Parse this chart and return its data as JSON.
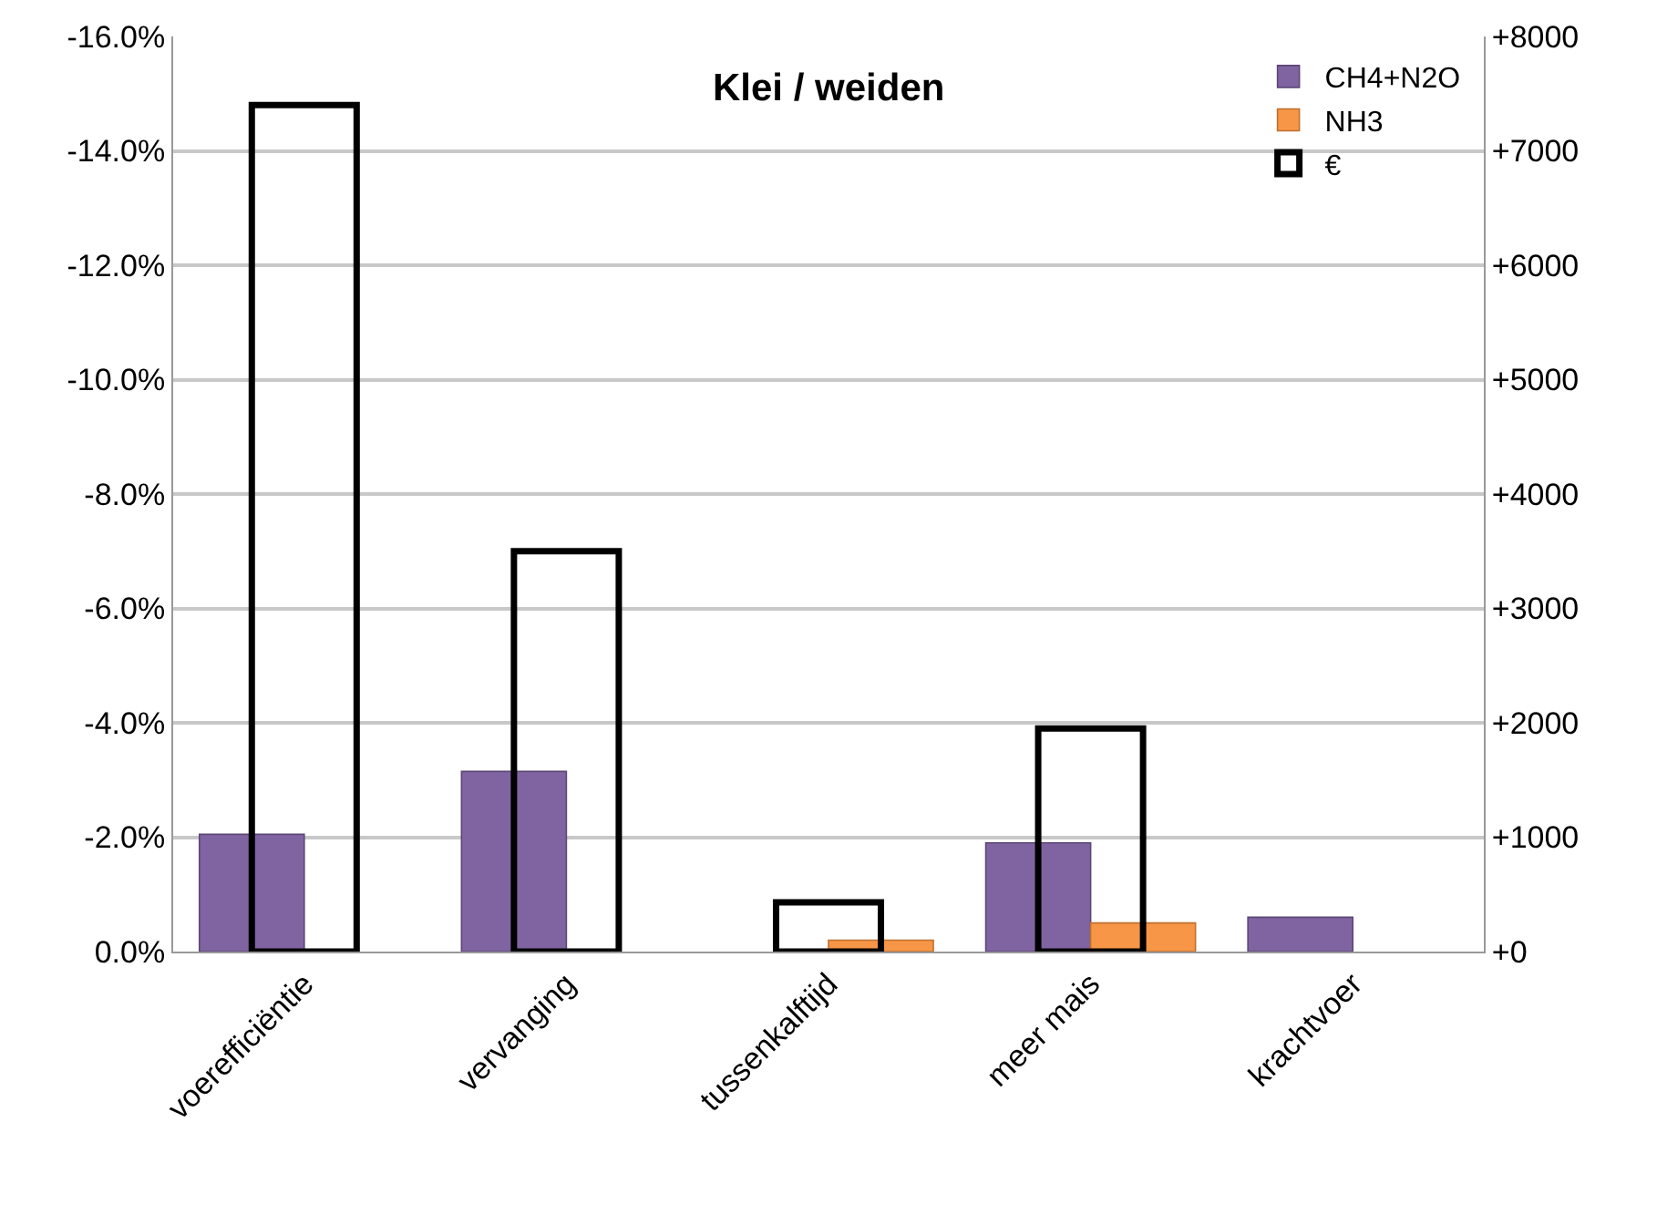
{
  "chart_data": {
    "type": "bar",
    "title": "Klei / weiden",
    "categories": [
      "voerefficiëntie",
      "vervanging",
      "tussenkalftijd",
      "meer mais",
      "krachtvoer"
    ],
    "series": [
      {
        "name": "CH4+N2O",
        "color": "#8064a2",
        "values": [
          -2.05,
          -3.15,
          null,
          -1.9,
          -0.6
        ]
      },
      {
        "name": "NH3",
        "color": "#f79646",
        "values": [
          null,
          null,
          -0.2,
          -0.5,
          null
        ]
      },
      {
        "name": "€",
        "color": "#000000",
        "axis": "y2",
        "values": [
          7400,
          3500,
          430,
          1950,
          null
        ]
      }
    ],
    "ylim": [
      0,
      -16
    ],
    "yticks": [
      {
        "value": 0,
        "label": "0.0%"
      },
      {
        "value": -2,
        "label": "-2.0%"
      },
      {
        "value": -4,
        "label": "-4.0%"
      },
      {
        "value": -6,
        "label": "-6.0%"
      },
      {
        "value": -8,
        "label": "-8.0%"
      },
      {
        "value": -10,
        "label": "-10.0%"
      },
      {
        "value": -12,
        "label": "-12.0%"
      },
      {
        "value": -14,
        "label": "-14.0%"
      },
      {
        "value": -16,
        "label": "-16.0%"
      }
    ],
    "y2lim": [
      0,
      8000
    ],
    "y2ticks": [
      {
        "value": 0,
        "label": "+0"
      },
      {
        "value": 1000,
        "label": "+1000"
      },
      {
        "value": 2000,
        "label": "+2000"
      },
      {
        "value": 3000,
        "label": "+3000"
      },
      {
        "value": 4000,
        "label": "+4000"
      },
      {
        "value": 5000,
        "label": "+5000"
      },
      {
        "value": 6000,
        "label": "+6000"
      },
      {
        "value": 7000,
        "label": "+7000"
      },
      {
        "value": 8000,
        "label": "+8000"
      }
    ],
    "grid": "y",
    "legend": "top right"
  }
}
